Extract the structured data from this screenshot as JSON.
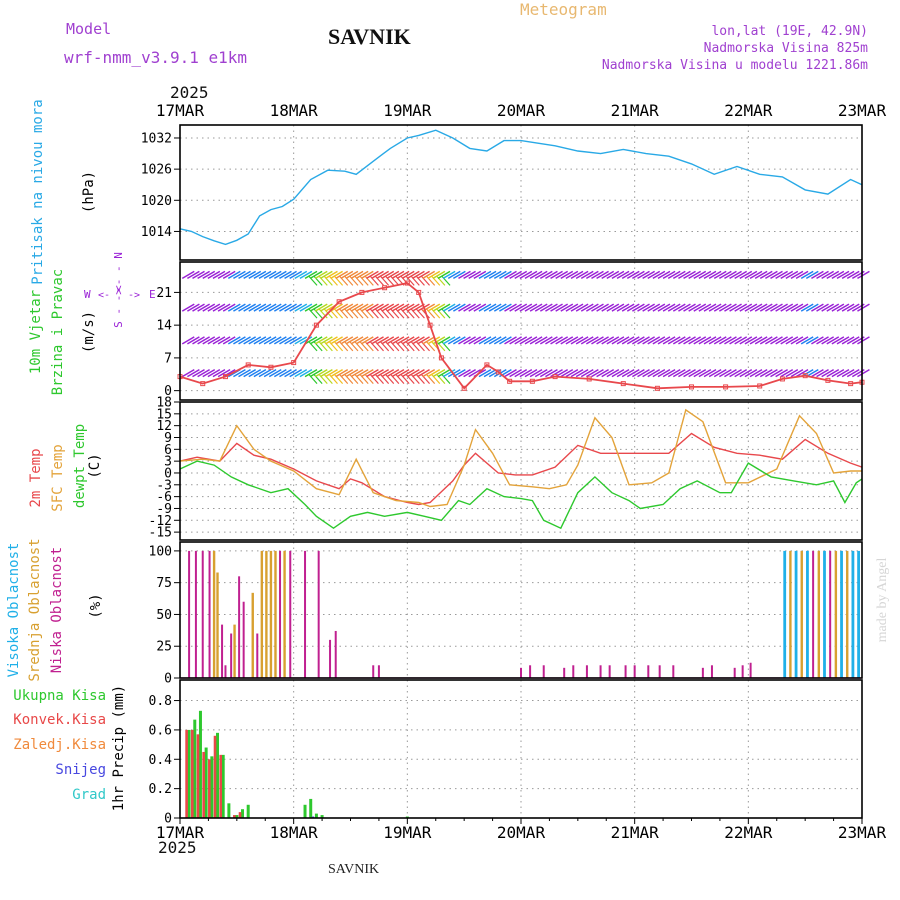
{
  "header": {
    "model_label": "Model",
    "model_name": "wrf-nmm_v3.9.1 e1km",
    "station": "SAVNIK",
    "meteogram": "Meteogram",
    "lonlat": "lon,lat (19E, 42.9N)",
    "altitude": "Nadmorska Visina 825m",
    "model_altitude": "Nadmorska Visina u modelu 1221.86m",
    "year_top": "2025",
    "year_bottom": "2025",
    "footer": "SAVNIK",
    "watermark": "made by Angel"
  },
  "colors": {
    "pressure": "#29a9e6",
    "temp2m": "#e8484c",
    "sfc_temp": "#e3a33a",
    "dewpt": "#2ec82e",
    "high_cloud": "#20b0e8",
    "mid_cloud": "#d8a030",
    "low_cloud": "#c02090",
    "wind_purple": "#9a22d6",
    "total_precip": "#2ec82e",
    "conv_precip": "#e84848",
    "frozen_precip": "#f08a3c",
    "snow": "#4848e0",
    "hail": "#30c8c8"
  },
  "chart_data": {
    "type": "line",
    "x_axis": {
      "ticks": [
        "17MAR",
        "18MAR",
        "19MAR",
        "20MAR",
        "21MAR",
        "22MAR",
        "23MAR"
      ],
      "range_days": [
        0,
        6
      ]
    },
    "panels": [
      {
        "id": "pressure",
        "type": "line",
        "ylabel": "(hPa)",
        "legend": [
          "Pritisak na nivou mora"
        ],
        "yticks": [
          1014,
          1020,
          1026,
          1032
        ],
        "ylim": [
          1008.5,
          1034.5
        ],
        "grid": true,
        "series": [
          {
            "name": "Pritisak na nivou mora",
            "color_key": "pressure",
            "x": [
              0,
              0.1,
              0.2,
              0.3,
              0.4,
              0.5,
              0.6,
              0.7,
              0.8,
              0.9,
              1.0,
              1.15,
              1.3,
              1.45,
              1.55,
              1.7,
              1.85,
              2.0,
              2.1,
              2.25,
              2.4,
              2.55,
              2.7,
              2.85,
              3.0,
              3.15,
              3.3,
              3.5,
              3.7,
              3.9,
              4.1,
              4.3,
              4.5,
              4.7,
              4.9,
              5.1,
              5.3,
              5.5,
              5.7,
              5.9,
              6.0
            ],
            "y": [
              1014.5,
              1014,
              1013,
              1012.2,
              1011.5,
              1012.3,
              1013.5,
              1017,
              1018.2,
              1018.8,
              1020.2,
              1024,
              1025.8,
              1025.6,
              1025,
              1027.5,
              1030,
              1032,
              1032.5,
              1033.5,
              1032,
              1030,
              1029.5,
              1031.5,
              1031.5,
              1031,
              1030.5,
              1029.5,
              1029,
              1029.8,
              1029,
              1028.5,
              1027,
              1025,
              1026.5,
              1025,
              1024.5,
              1022,
              1021.2,
              1024,
              1023
            ]
          }
        ]
      },
      {
        "id": "wind",
        "type": "line",
        "ylabel": "(m/s)",
        "legend": [
          "10m Vjetar",
          "Brzina i Pravac"
        ],
        "compass": {
          "n": "N",
          "s": "S",
          "w": "W",
          "e": "E"
        },
        "yticks": [
          0,
          7,
          14,
          21
        ],
        "ylim": [
          -2,
          27.5
        ],
        "grid": true,
        "barb_rows": [
          0,
          7,
          14,
          21
        ],
        "barb_levels": [
          3,
          10,
          17,
          24
        ],
        "series": [
          {
            "name": "10m Vjetar",
            "color_key": "temp2m",
            "x": [
              0,
              0.2,
              0.4,
              0.6,
              0.8,
              1.0,
              1.2,
              1.4,
              1.6,
              1.8,
              2.0,
              2.1,
              2.2,
              2.3,
              2.5,
              2.7,
              2.8,
              2.9,
              3.1,
              3.3,
              3.6,
              3.9,
              4.2,
              4.5,
              4.8,
              5.1,
              5.3,
              5.5,
              5.7,
              5.9,
              6.0
            ],
            "y": [
              3,
              1.5,
              3,
              5.5,
              5,
              6,
              14,
              19,
              21,
              22,
              23,
              21,
              14,
              7,
              0.5,
              5.5,
              4,
              2,
              2,
              3,
              2.5,
              1.5,
              0.5,
              0.8,
              0.8,
              1,
              2.5,
              3.2,
              2.2,
              1.5,
              1.8
            ]
          }
        ]
      },
      {
        "id": "temperature",
        "type": "line",
        "ylabel": "(C)",
        "legend": [
          "2m Temp",
          "SFC Temp",
          "dewpt Temp"
        ],
        "yticks": [
          -15,
          -12,
          -9,
          -6,
          -3,
          0,
          3,
          6,
          9,
          12,
          15,
          18
        ],
        "ylim": [
          -17,
          18
        ],
        "grid": true,
        "series": [
          {
            "name": "2m Temp",
            "color_key": "temp2m",
            "x": [
              0,
              0.15,
              0.35,
              0.5,
              0.65,
              0.8,
              1.0,
              1.2,
              1.4,
              1.5,
              1.6,
              1.8,
              2.0,
              2.1,
              2.2,
              2.4,
              2.5,
              2.6,
              2.8,
              2.95,
              3.1,
              3.3,
              3.5,
              3.7,
              3.9,
              4.1,
              4.3,
              4.5,
              4.7,
              4.9,
              5.1,
              5.3,
              5.5,
              5.7,
              5.9,
              6.0
            ],
            "y": [
              3,
              4,
              3,
              7.5,
              4.5,
              3.5,
              1,
              -2,
              -4,
              -1.5,
              -2.5,
              -6,
              -7.5,
              -8,
              -7.5,
              -2,
              2,
              5,
              0,
              -0.5,
              -0.5,
              1.5,
              7,
              5,
              5,
              5,
              5,
              10,
              6.5,
              5,
              4.5,
              3.5,
              8.5,
              5,
              2.5,
              1.5
            ]
          },
          {
            "name": "SFC Temp",
            "color_key": "sfc_temp",
            "x": [
              0,
              0.2,
              0.35,
              0.5,
              0.65,
              0.8,
              1.0,
              1.2,
              1.4,
              1.55,
              1.7,
              1.9,
              2.1,
              2.2,
              2.35,
              2.5,
              2.6,
              2.75,
              2.9,
              3.1,
              3.25,
              3.4,
              3.5,
              3.65,
              3.8,
              3.95,
              4.15,
              4.3,
              4.45,
              4.6,
              4.8,
              5.0,
              5.25,
              5.45,
              5.6,
              5.75,
              5.9,
              6.0
            ],
            "y": [
              3,
              3.5,
              3,
              12,
              6,
              3,
              0.5,
              -4,
              -5.5,
              3.5,
              -5,
              -7,
              -7.5,
              -8.5,
              -8,
              2,
              11,
              5,
              -3,
              -3.5,
              -4,
              -3,
              2,
              14,
              9,
              -3,
              -2.5,
              0,
              16,
              13,
              -2.5,
              -2.5,
              1,
              14.5,
              10,
              0,
              0.5,
              0.5
            ]
          },
          {
            "name": "dewpt Temp",
            "color_key": "dewpt",
            "x": [
              0,
              0.15,
              0.3,
              0.45,
              0.6,
              0.8,
              0.95,
              1.1,
              1.2,
              1.35,
              1.5,
              1.65,
              1.8,
              2.0,
              2.15,
              2.3,
              2.45,
              2.55,
              2.7,
              2.85,
              3.0,
              3.1,
              3.2,
              3.35,
              3.5,
              3.65,
              3.8,
              3.95,
              4.05,
              4.25,
              4.4,
              4.55,
              4.75,
              4.85,
              5.0,
              5.2,
              5.4,
              5.6,
              5.75,
              5.85,
              5.95,
              6.0
            ],
            "y": [
              1,
              3,
              2,
              -1,
              -3,
              -5,
              -4,
              -8,
              -11,
              -14,
              -11,
              -10,
              -11,
              -10,
              -11,
              -12,
              -7,
              -8,
              -4,
              -6,
              -6.5,
              -7,
              -12,
              -14,
              -5,
              -1,
              -5,
              -7,
              -9,
              -8,
              -4,
              -2,
              -5,
              -5,
              2.5,
              -1,
              -2,
              -3,
              -2,
              -7.5,
              -2.5,
              -1.5
            ]
          }
        ]
      },
      {
        "id": "clouds",
        "type": "bar",
        "ylabel": "(%)",
        "legend": [
          "Visoka Oblacnost",
          "Srednja Oblacnost",
          "Niska Oblacnost"
        ],
        "yticks": [
          0,
          25,
          50,
          75,
          100
        ],
        "ylim": [
          0,
          107
        ],
        "grid": true,
        "bars": [
          {
            "x": 0.08,
            "low": 100
          },
          {
            "x": 0.14,
            "low": 100
          },
          {
            "x": 0.2,
            "low": 100
          },
          {
            "x": 0.26,
            "low": 100
          },
          {
            "x": 0.3,
            "mid": 100
          },
          {
            "x": 0.33,
            "mid": 83
          },
          {
            "x": 0.37,
            "low": 42
          },
          {
            "x": 0.4,
            "low": 10
          },
          {
            "x": 0.45,
            "low": 35
          },
          {
            "x": 0.48,
            "mid": 42
          },
          {
            "x": 0.52,
            "low": 80
          },
          {
            "x": 0.56,
            "low": 60
          },
          {
            "x": 0.64,
            "mid": 67
          },
          {
            "x": 0.68,
            "low": 35
          },
          {
            "x": 0.72,
            "mid": 100
          },
          {
            "x": 0.76,
            "mid": 100
          },
          {
            "x": 0.8,
            "mid": 100
          },
          {
            "x": 0.84,
            "mid": 100
          },
          {
            "x": 0.88,
            "low": 100
          },
          {
            "x": 0.92,
            "mid": 100
          },
          {
            "x": 0.97,
            "low": 100
          },
          {
            "x": 1.1,
            "low": 100
          },
          {
            "x": 1.22,
            "low": 100
          },
          {
            "x": 1.32,
            "low": 30
          },
          {
            "x": 1.37,
            "low": 37
          },
          {
            "x": 1.7,
            "low": 10
          },
          {
            "x": 1.75,
            "low": 10
          },
          {
            "x": 3.0,
            "low": 8
          },
          {
            "x": 3.08,
            "low": 10
          },
          {
            "x": 3.2,
            "low": 10
          },
          {
            "x": 3.38,
            "low": 8
          },
          {
            "x": 3.46,
            "low": 10
          },
          {
            "x": 3.58,
            "low": 10
          },
          {
            "x": 3.7,
            "low": 10
          },
          {
            "x": 3.78,
            "low": 10
          },
          {
            "x": 3.92,
            "low": 10
          },
          {
            "x": 4.0,
            "low": 10
          },
          {
            "x": 4.12,
            "low": 10
          },
          {
            "x": 4.22,
            "low": 10
          },
          {
            "x": 4.34,
            "low": 10
          },
          {
            "x": 4.6,
            "low": 8
          },
          {
            "x": 4.68,
            "low": 10
          },
          {
            "x": 4.88,
            "low": 8
          },
          {
            "x": 4.95,
            "low": 10
          },
          {
            "x": 5.02,
            "low": 12
          },
          {
            "x": 5.32,
            "high": 100
          },
          {
            "x": 5.37,
            "mid": 100
          },
          {
            "x": 5.42,
            "high": 100
          },
          {
            "x": 5.47,
            "mid": 100
          },
          {
            "x": 5.52,
            "high": 100
          },
          {
            "x": 5.57,
            "low": 100
          },
          {
            "x": 5.62,
            "mid": 100
          },
          {
            "x": 5.67,
            "high": 100
          },
          {
            "x": 5.72,
            "low": 100
          },
          {
            "x": 5.77,
            "mid": 100
          },
          {
            "x": 5.82,
            "high": 100
          },
          {
            "x": 5.87,
            "mid": 100
          },
          {
            "x": 5.92,
            "high": 100
          },
          {
            "x": 5.97,
            "high": 100
          }
        ]
      },
      {
        "id": "precip",
        "type": "bar",
        "ylabel": "1hr Precip (mm)",
        "legend": [
          "Ukupna Kisa",
          "Konvek.Kisa",
          "Zaledj.Kisa",
          "Snijeg",
          "Grad"
        ],
        "yticks": [
          0,
          0.2,
          0.4,
          0.6,
          0.8
        ],
        "ylim": [
          0,
          0.94
        ],
        "grid": true,
        "bars": [
          {
            "x": 0.08,
            "total": 0.6,
            "conv": 0.6
          },
          {
            "x": 0.13,
            "total": 0.67,
            "conv": 0.6
          },
          {
            "x": 0.18,
            "total": 0.73,
            "conv": 0.57
          },
          {
            "x": 0.23,
            "total": 0.48,
            "conv": 0.45
          },
          {
            "x": 0.28,
            "total": 0.42,
            "conv": 0.4
          },
          {
            "x": 0.33,
            "total": 0.58,
            "conv": 0.56
          },
          {
            "x": 0.38,
            "total": 0.43,
            "conv": 0.43
          },
          {
            "x": 0.43,
            "total": 0.1,
            "conv": 0
          },
          {
            "x": 0.5,
            "total": 0.02,
            "conv": 0.02
          },
          {
            "x": 0.55,
            "total": 0.06,
            "conv": 0.04
          },
          {
            "x": 0.6,
            "total": 0.09,
            "conv": 0
          },
          {
            "x": 1.1,
            "total": 0.09,
            "conv": 0
          },
          {
            "x": 1.15,
            "total": 0.13,
            "conv": 0,
            "snow": 0.01
          },
          {
            "x": 1.2,
            "total": 0.03,
            "conv": 0
          },
          {
            "x": 1.25,
            "total": 0.02,
            "conv": 0
          },
          {
            "x": 2.0,
            "total": 0.01,
            "conv": 0
          }
        ]
      }
    ]
  }
}
